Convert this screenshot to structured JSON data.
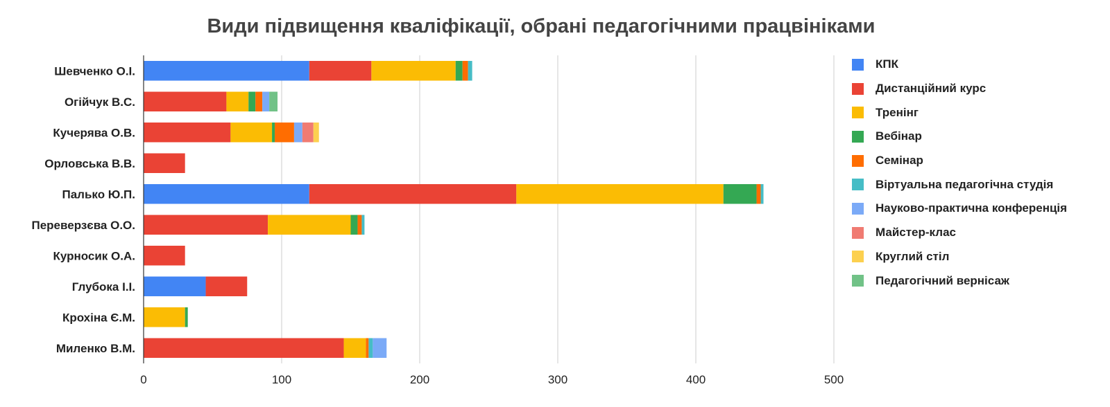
{
  "chart_data": {
    "type": "bar",
    "orientation": "horizontal",
    "stacked": true,
    "title": "Види підвищення кваліфікації, обрані педагогічними працвініками",
    "xlabel": "",
    "ylabel": "",
    "xlim": [
      0,
      500
    ],
    "xticks": [
      0,
      100,
      200,
      300,
      400,
      500
    ],
    "grid": true,
    "legend_position": "right",
    "categories": [
      "Шевченко О.І.",
      "Огійчук В.С.",
      "Кучерява О.В.",
      "Орловська В.В.",
      "Палько Ю.П.",
      "Переверзєва О.О.",
      "Курносик О.А.",
      "Глубока І.І.",
      "Крохіна Є.М.",
      "Миленко В.М."
    ],
    "series": [
      {
        "name": "КПК",
        "color": "#4285f4",
        "values": [
          120,
          0,
          0,
          0,
          120,
          0,
          0,
          45,
          0,
          0
        ]
      },
      {
        "name": "Дистанційний курс",
        "color": "#ea4335",
        "values": [
          45,
          60,
          63,
          30,
          150,
          90,
          30,
          30,
          0,
          145
        ]
      },
      {
        "name": "Тренінг",
        "color": "#fbbc04",
        "values": [
          61,
          16,
          30,
          0,
          150,
          60,
          0,
          0,
          30,
          16
        ]
      },
      {
        "name": "Вебінар",
        "color": "#34a853",
        "values": [
          5,
          5,
          2,
          0,
          24,
          5,
          0,
          0,
          2,
          0
        ]
      },
      {
        "name": "Семінар",
        "color": "#ff6d01",
        "values": [
          4,
          5,
          14,
          0,
          3,
          3,
          0,
          0,
          0,
          2
        ]
      },
      {
        "name": "Віртуальна педагогічна студія",
        "color": "#46bdc6",
        "values": [
          3,
          0,
          0,
          0,
          2,
          2,
          0,
          0,
          0,
          3
        ]
      },
      {
        "name": "Науково-практична конференція",
        "color": "#7baaf7",
        "values": [
          0,
          5,
          6,
          0,
          0,
          0,
          0,
          0,
          0,
          10
        ]
      },
      {
        "name": "Майстер-клас",
        "color": "#f07b72",
        "values": [
          0,
          0,
          8,
          0,
          0,
          0,
          0,
          0,
          0,
          0
        ]
      },
      {
        "name": "Круглий стіл",
        "color": "#fcd04f",
        "values": [
          0,
          0,
          4,
          0,
          0,
          0,
          0,
          0,
          0,
          0
        ]
      },
      {
        "name": "Педагогічний вернісаж",
        "color": "#71c287",
        "values": [
          0,
          6,
          0,
          0,
          0,
          0,
          0,
          0,
          0,
          0
        ]
      }
    ]
  }
}
